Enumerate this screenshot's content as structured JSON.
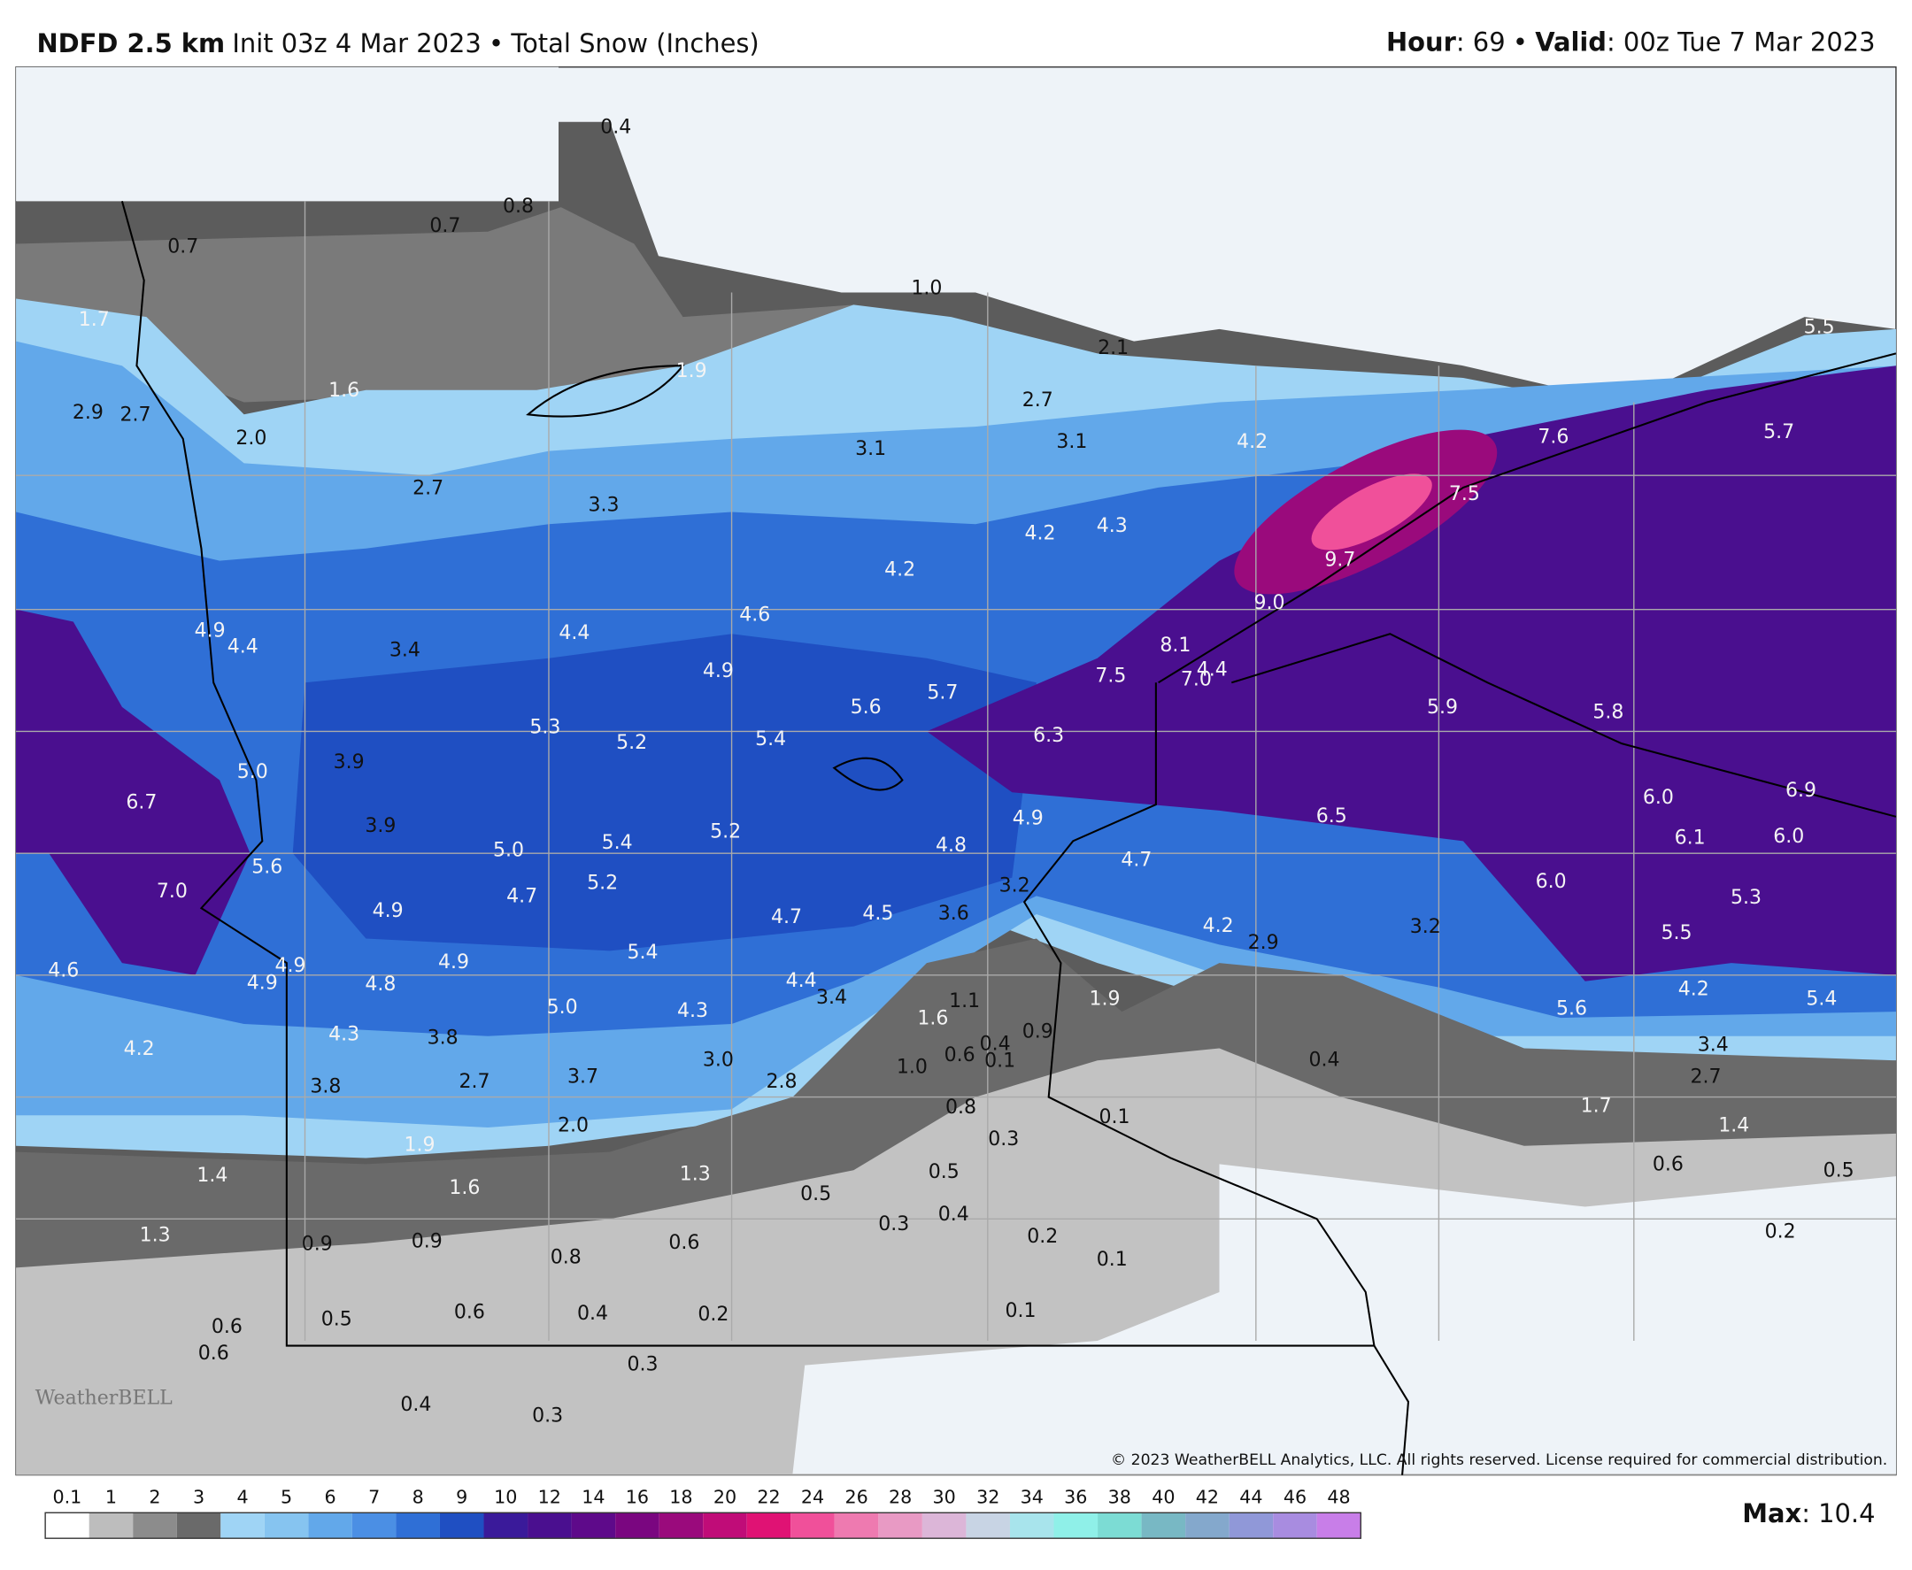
{
  "header": {
    "model": "NDFD 2.5 km",
    "init": "Init 03z 4 Mar 2023",
    "product": "Total Snow (Inches)",
    "hour_label": "Hour",
    "hour_value": ": 69",
    "valid_label": "Valid",
    "valid_value": ": 00z Tue 7 Mar 2023"
  },
  "watermark": "WeatherBELL",
  "copyright": "© 2023 WeatherBELL Analytics, LLC. All rights reserved. License required for commercial distribution.",
  "labels": [
    "0.4",
    "0.8",
    "0.7",
    "0.7",
    "1.7",
    "1.6",
    "1.9",
    "2.9",
    "2.7",
    "2.0",
    "2.7",
    "3.3",
    "3.1",
    "2.7",
    "3.1",
    "1.0",
    "2.1",
    "4.2",
    "7.6",
    "5.5",
    "5.7",
    "7.5",
    "9.7",
    "9.0",
    "8.1",
    "7.0",
    "4.4",
    "4.2",
    "4.3",
    "4.2",
    "4.6",
    "4.4",
    "4.9",
    "3.4",
    "4.9",
    "4.4",
    "7.5",
    "5.7",
    "5.6",
    "6.3",
    "5.9",
    "5.8",
    "5.4",
    "5.2",
    "5.3",
    "3.9",
    "5.0",
    "6.7",
    "6.9",
    "6.0",
    "6.1",
    "6.0",
    "6.5",
    "4.9",
    "4.8",
    "5.2",
    "5.4",
    "5.0",
    "3.9",
    "5.6",
    "7.0",
    "4.7",
    "3.2",
    "6.0",
    "5.3",
    "5.2",
    "4.7",
    "4.9",
    "4.7",
    "4.5",
    "3.6",
    "4.2",
    "2.9",
    "3.2",
    "5.5",
    "4.6",
    "4.9",
    "4.9",
    "4.8",
    "4.9",
    "5.4",
    "4.4",
    "3.4",
    "1.1",
    "1.6",
    "1.9",
    "0.9",
    "0.4",
    "0.6",
    "0.1",
    "1.0",
    "4.2",
    "5.4",
    "5.6",
    "5.0",
    "4.3",
    "4.3",
    "3.8",
    "4.2",
    "3.0",
    "0.4",
    "3.4",
    "2.7",
    "3.8",
    "2.7",
    "3.7",
    "2.8",
    "0.8",
    "0.1",
    "1.7",
    "1.4",
    "2.0",
    "0.3",
    "1.9",
    "1.4",
    "1.6",
    "1.3",
    "0.5",
    "0.6",
    "0.5",
    "0.5",
    "0.3",
    "0.4",
    "1.3",
    "0.9",
    "0.9",
    "0.6",
    "0.2",
    "0.1",
    "0.2",
    "0.8",
    "0.6",
    "0.5",
    "0.6",
    "0.4",
    "0.2",
    "0.1",
    "0.6",
    "0.3",
    "0.4",
    "0.3"
  ],
  "colorbar": {
    "ticks": [
      0.1,
      1,
      2,
      3,
      4,
      5,
      6,
      7,
      8,
      9,
      10,
      12,
      14,
      16,
      18,
      20,
      22,
      24,
      26,
      28,
      30,
      32,
      34,
      36,
      38,
      40,
      42,
      44,
      46,
      48
    ],
    "colors": [
      "#ffffff",
      "#bdbdbd",
      "#8c8c8c",
      "#6a6a6a",
      "#9fd4f5",
      "#86c4f0",
      "#62a8ea",
      "#4b8fe4",
      "#2f6fd6",
      "#1f4fc2",
      "#3a1a9a",
      "#4a0f8f",
      "#5e0a8a",
      "#7a0680",
      "#9a0a7c",
      "#c00c78",
      "#e01274",
      "#f0509a",
      "#ee7ab0",
      "#e89ac4",
      "#dcb6d8",
      "#c8d4e4",
      "#a8e4ec",
      "#8ff0e8",
      "#7cdcd4",
      "#78b8c4",
      "#84a8cc",
      "#9098d8",
      "#a88ce0",
      "#c87ee8"
    ]
  },
  "max": {
    "label": "Max",
    "value": ": 10.4"
  }
}
